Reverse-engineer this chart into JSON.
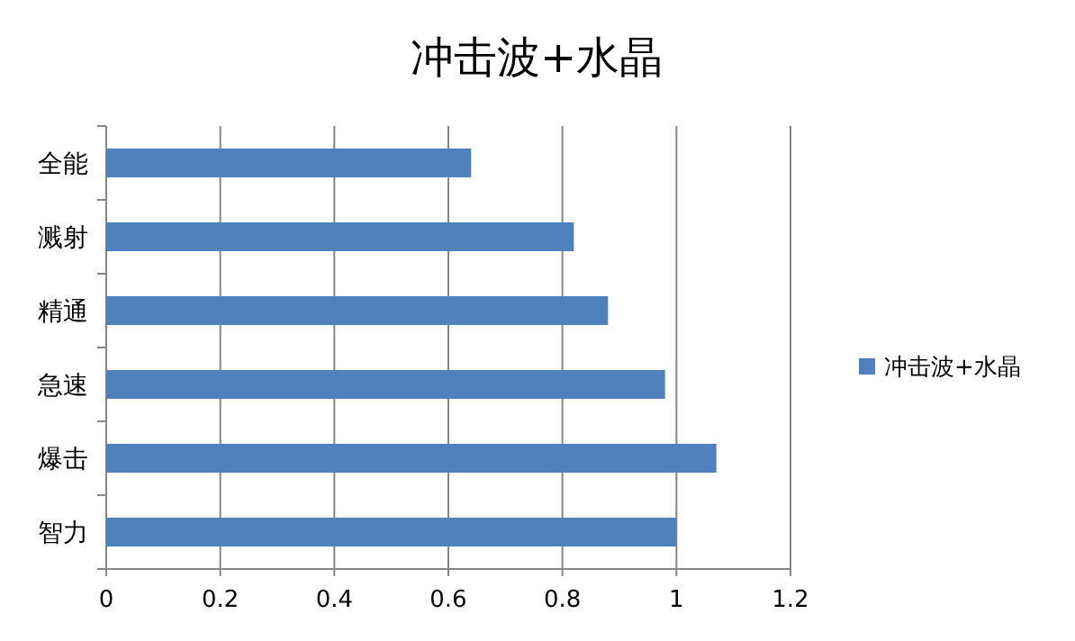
{
  "chart_data": {
    "type": "bar",
    "orientation": "horizontal",
    "title": "冲击波+水晶",
    "categories": [
      "全能",
      "溅射",
      "精通",
      "急速",
      "爆击",
      "智力"
    ],
    "series": [
      {
        "name": "冲击波+水晶",
        "color": "#4f81bd",
        "values": [
          0.64,
          0.82,
          0.88,
          0.98,
          1.07,
          1.0
        ]
      }
    ],
    "xlim": [
      0,
      1.2
    ],
    "xticks": [
      0,
      0.2,
      0.4,
      0.6,
      0.8,
      1,
      1.2
    ],
    "grid": "x",
    "legend": "right"
  }
}
